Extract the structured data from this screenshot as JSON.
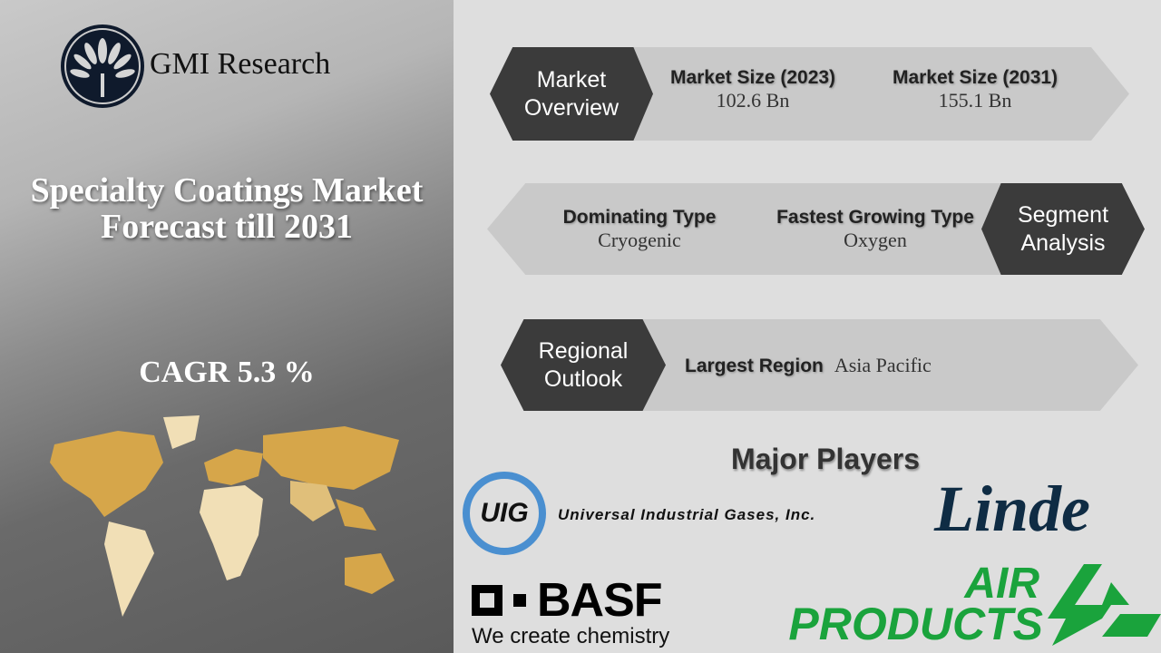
{
  "brand": {
    "name": "GMI Research"
  },
  "title": "Specialty Coatings Market Forecast till 2031",
  "cagr": "CAGR 5.3 %",
  "overview": {
    "label": "Market Overview",
    "items": [
      {
        "k": "Market Size (2023)",
        "v": "102.6 Bn"
      },
      {
        "k": "Market Size (2031)",
        "v": "155.1 Bn"
      }
    ]
  },
  "segment": {
    "label": "Segment Analysis",
    "items": [
      {
        "k": "Dominating Type",
        "v": "Cryogenic"
      },
      {
        "k": "Fastest Growing Type",
        "v": "Oxygen"
      }
    ]
  },
  "regional": {
    "label": "Regional Outlook",
    "k": "Largest Region",
    "v": "Asia Pacific"
  },
  "players": {
    "heading": "Major Players",
    "uig": "UIG",
    "uig_full": "Universal Industrial Gases, Inc.",
    "linde": "Linde",
    "basf": "BASF",
    "basf_tag": "We create chemistry",
    "air1": "AIR",
    "air2": "PRODUCTS"
  },
  "colors": {
    "dark": "#3b3b3b",
    "band": "#c9c9c9",
    "map_highlight": "#d6a64a",
    "map_light": "#f1dfb6",
    "air_products": "#1aa33c",
    "linde": "#0f2c44"
  }
}
